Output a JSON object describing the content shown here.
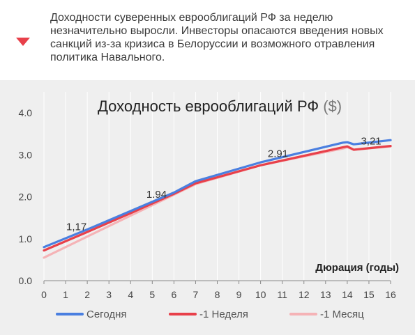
{
  "header": {
    "headline": "Доходности суверенных еврооблигаций РФ за неделю незначительно выросли. Инвесторы опасаются введения новых санкций из-за кризиса в Белоруссии и возможного отравления политика Навального.",
    "trend_icon": "triangle-down-icon",
    "trend_color": "#e8404a"
  },
  "chart_data": {
    "type": "line",
    "title": "Доходность еврооблигаций РФ",
    "title_unit": "($)",
    "xlabel": "Дюрация (годы)",
    "ylabel": "",
    "xlim": [
      0,
      16
    ],
    "ylim": [
      0,
      4.0
    ],
    "x_ticks": [
      "0",
      "1",
      "2",
      "3",
      "4",
      "5",
      "6",
      "7",
      "8",
      "9",
      "10",
      "11",
      "12",
      "13",
      "14",
      "15",
      "16"
    ],
    "y_ticks": [
      "0.0",
      "1.0",
      "2.0",
      "3.0",
      "4.0"
    ],
    "grid": "vertical",
    "legend_position": "bottom",
    "series": [
      {
        "name": "Сегодня",
        "color": "#4a7fe0",
        "x": [
          0,
          2,
          4,
          6,
          7,
          10,
          13.8,
          14.0,
          14.3,
          16
        ],
        "y": [
          0.8,
          1.22,
          1.66,
          2.1,
          2.37,
          2.82,
          3.29,
          3.3,
          3.25,
          3.35
        ]
      },
      {
        "name": "-1 Неделя",
        "color": "#e8404a",
        "x": [
          0,
          2,
          4,
          6,
          7,
          10,
          13.8,
          14.0,
          14.3,
          16
        ],
        "y": [
          0.72,
          1.16,
          1.61,
          2.07,
          2.32,
          2.75,
          3.18,
          3.2,
          3.12,
          3.21
        ]
      },
      {
        "name": "-1 Месяц",
        "color": "#f5b3b6",
        "x": [
          0,
          2,
          4,
          6,
          7,
          10,
          13.8,
          14.0,
          14.3,
          16
        ],
        "y": [
          0.55,
          1.05,
          1.55,
          2.05,
          2.3,
          2.75,
          3.15,
          3.18,
          3.12,
          3.2
        ]
      }
    ],
    "annotations": [
      {
        "x": 1.5,
        "y": 1.17,
        "text": "1,17"
      },
      {
        "x": 5.2,
        "y": 1.94,
        "text": "1.94"
      },
      {
        "x": 10.8,
        "y": 2.91,
        "text": "2.91"
      },
      {
        "x": 15.1,
        "y": 3.21,
        "text": "3,21"
      }
    ]
  }
}
